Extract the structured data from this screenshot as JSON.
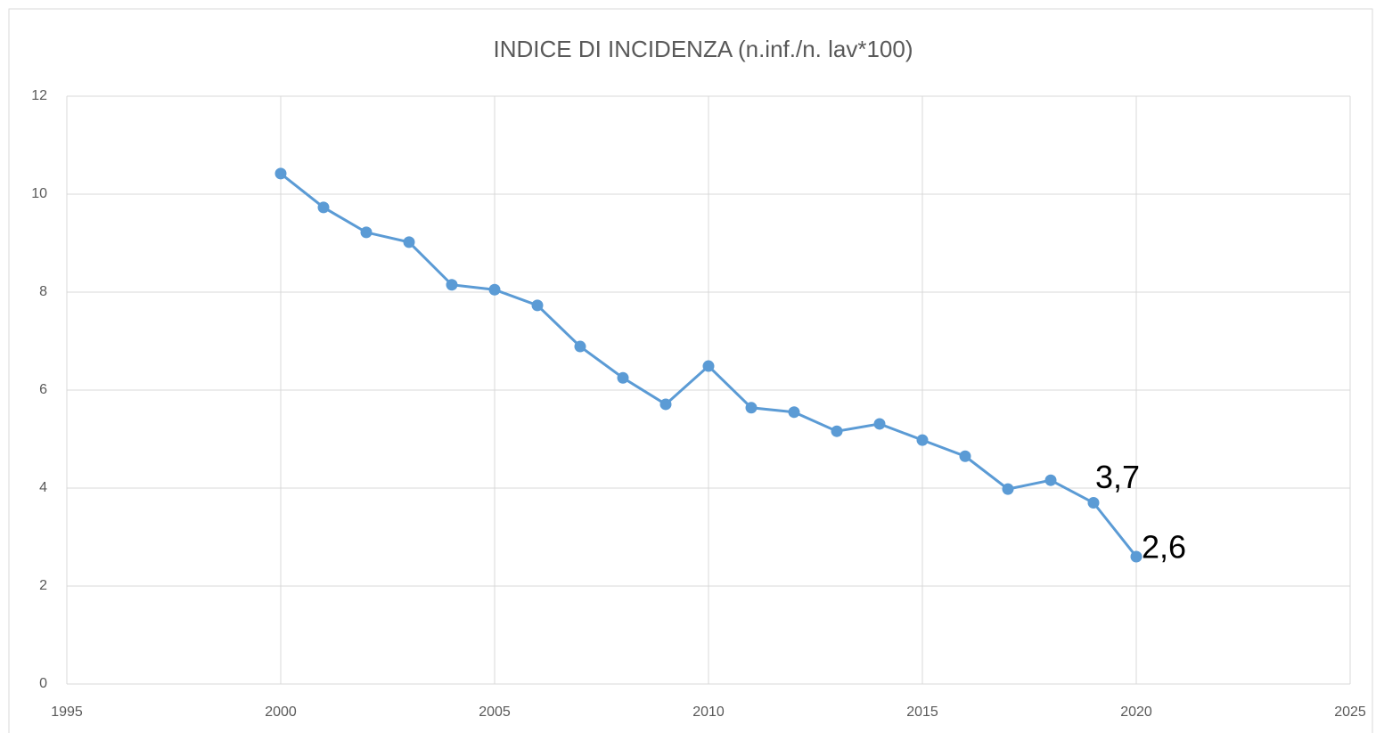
{
  "chart_data": {
    "type": "line",
    "title": "INDICE DI INCIDENZA (n.inf./n. lav*100)",
    "x": [
      2000,
      2001,
      2002,
      2003,
      2004,
      2005,
      2006,
      2007,
      2008,
      2009,
      2010,
      2011,
      2012,
      2013,
      2014,
      2015,
      2016,
      2017,
      2018,
      2019,
      2020
    ],
    "series": [
      {
        "name": null,
        "color": "#5b9bd5",
        "values": [
          10.42,
          9.73,
          9.22,
          9.02,
          8.15,
          8.05,
          7.73,
          6.89,
          6.25,
          5.71,
          6.49,
          5.64,
          5.55,
          5.16,
          5.31,
          4.98,
          4.65,
          3.98,
          4.16,
          3.7,
          2.6
        ],
        "value_labels": [
          null,
          null,
          null,
          null,
          null,
          null,
          null,
          null,
          null,
          null,
          null,
          null,
          null,
          null,
          null,
          null,
          null,
          null,
          null,
          "3,7",
          "2,6"
        ]
      }
    ],
    "xlim": [
      1995,
      2025
    ],
    "xticks": [
      1995,
      2000,
      2005,
      2010,
      2015,
      2020,
      2025
    ],
    "ylim": [
      0,
      12
    ],
    "yticks": [
      0,
      2,
      4,
      6,
      8,
      10,
      12
    ],
    "grid": true
  }
}
